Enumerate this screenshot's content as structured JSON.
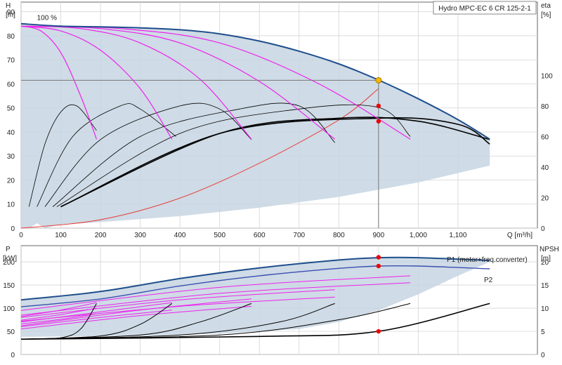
{
  "chart_data": [
    {
      "type": "line",
      "title": "Hydro MPC-EC 6 CR 125-2-1",
      "y_left_label": [
        "H",
        "[m]"
      ],
      "y_right_label": [
        "eta",
        "[%]"
      ],
      "x_label": "Q [m³/h]",
      "x_ticks": [
        "0",
        "100",
        "200",
        "300",
        "400",
        "500",
        "600",
        "700",
        "800",
        "900",
        "1,000",
        "1,100"
      ],
      "y_left_ticks": [
        "0",
        "10",
        "20",
        "30",
        "40",
        "50",
        "60",
        "70",
        "80",
        "90"
      ],
      "y_right_ticks": [
        "0",
        "20",
        "40",
        "60",
        "80",
        "100"
      ],
      "xlim": [
        0,
        1300
      ],
      "ylim": [
        0,
        94
      ],
      "ylim_right": [
        0,
        148
      ],
      "grid": true,
      "annotation_100pct": "100 %",
      "duty_point": {
        "Q": 900,
        "H": 61.5
      },
      "marker_points_eta": [
        {
          "Q": 900,
          "eta": 80
        },
        {
          "Q": 900,
          "eta": 70
        }
      ],
      "max_head_curve": {
        "Q": [
          0,
          100,
          200,
          300,
          400,
          500,
          600,
          700,
          800,
          900,
          1000,
          1100,
          1180
        ],
        "H": [
          85,
          84,
          83.7,
          83.3,
          82.5,
          80.8,
          77.8,
          73.6,
          68.3,
          61.6,
          53.8,
          45.1,
          37
        ]
      },
      "speed_curves": [
        {
          "Q": [
            0,
            50,
            100,
            150,
            190
          ],
          "H": [
            84,
            82,
            73,
            55,
            37
          ]
        },
        {
          "Q": [
            0,
            100,
            200,
            300,
            380
          ],
          "H": [
            84,
            82,
            74,
            58,
            37
          ]
        },
        {
          "Q": [
            0,
            150,
            300,
            450,
            580
          ],
          "H": [
            84,
            83,
            77,
            62,
            37
          ]
        },
        {
          "Q": [
            0,
            200,
            400,
            600,
            790
          ],
          "H": [
            84,
            83,
            77,
            61,
            37
          ]
        },
        {
          "Q": [
            0,
            250,
            500,
            750,
            980
          ],
          "H": [
            84,
            83,
            77,
            60,
            37
          ]
        }
      ],
      "system_curve": {
        "Q": [
          0,
          200,
          400,
          600,
          800,
          900
        ],
        "H": [
          0,
          3.5,
          12.5,
          27,
          45,
          58
        ]
      },
      "efficiency_curves": [
        {
          "Q": [
            20,
            60,
            100,
            140,
            190
          ],
          "eta": [
            14,
            55,
            76,
            80,
            64
          ]
        },
        {
          "Q": [
            40,
            130,
            250,
            300,
            390
          ],
          "eta": [
            14,
            60,
            80,
            78,
            60
          ]
        },
        {
          "Q": [
            60,
            200,
            400,
            500,
            580
          ],
          "eta": [
            14,
            58,
            80,
            78,
            58
          ]
        },
        {
          "Q": [
            80,
            300,
            550,
            700,
            790
          ],
          "eta": [
            14,
            60,
            78,
            80,
            56
          ]
        },
        {
          "Q": [
            90,
            400,
            700,
            900,
            980
          ],
          "eta": [
            14,
            62,
            78,
            79,
            60
          ]
        },
        {
          "Q": [
            100,
            500,
            800,
            1000,
            1180
          ],
          "eta": [
            14,
            62,
            72,
            70,
            58
          ]
        },
        {
          "Q": [
            100,
            500,
            900,
            1100,
            1180
          ],
          "eta": [
            14,
            62,
            72,
            68,
            55
          ]
        }
      ]
    },
    {
      "type": "line",
      "title": "",
      "y_left_label": [
        "P",
        "[kW]"
      ],
      "y_right_label": [
        "NPSH",
        "[m]"
      ],
      "y_left_ticks": [
        "0",
        "50",
        "100",
        "150",
        "200"
      ],
      "y_right_ticks": [
        "0",
        "5",
        "10",
        "15",
        "20"
      ],
      "xlim": [
        0,
        1300
      ],
      "ylim": [
        0,
        235
      ],
      "ylim_right": [
        0,
        23.5
      ],
      "grid": true,
      "series": [
        {
          "name": "P1 (motor+freq.converter)",
          "Q": [
            0,
            200,
            400,
            600,
            800,
            900,
            1000,
            1180
          ],
          "P": [
            118,
            136,
            164,
            187,
            204,
            209,
            209,
            203
          ]
        },
        {
          "name": "P2",
          "Q": [
            0,
            200,
            400,
            600,
            800,
            900,
            1000,
            1180
          ],
          "P": [
            103,
            120,
            148,
            170,
            186,
            191,
            191,
            185
          ]
        }
      ],
      "power_points": [
        {
          "Q": 900,
          "P": 210
        },
        {
          "Q": 900,
          "P": 191
        }
      ],
      "npsh_curves": [
        {
          "Q": [
            0,
            100,
            150,
            190
          ],
          "NPSH": [
            3.3,
            3.6,
            5.5,
            11
          ]
        },
        {
          "Q": [
            0,
            200,
            300,
            380
          ],
          "NPSH": [
            3.3,
            4,
            6.5,
            11
          ]
        },
        {
          "Q": [
            0,
            300,
            450,
            580
          ],
          "NPSH": [
            3.3,
            4.2,
            7,
            11
          ]
        },
        {
          "Q": [
            0,
            400,
            650,
            790
          ],
          "NPSH": [
            3.3,
            4.2,
            7,
            11
          ]
        },
        {
          "Q": [
            0,
            500,
            800,
            980
          ],
          "NPSH": [
            3.3,
            4.2,
            7.5,
            11
          ]
        },
        {
          "Q": [
            0,
            600,
            900,
            1180
          ],
          "NPSH": [
            3.3,
            3.9,
            5,
            11
          ]
        }
      ],
      "npsh_point": {
        "Q": 900,
        "NPSH": 5
      }
    }
  ]
}
